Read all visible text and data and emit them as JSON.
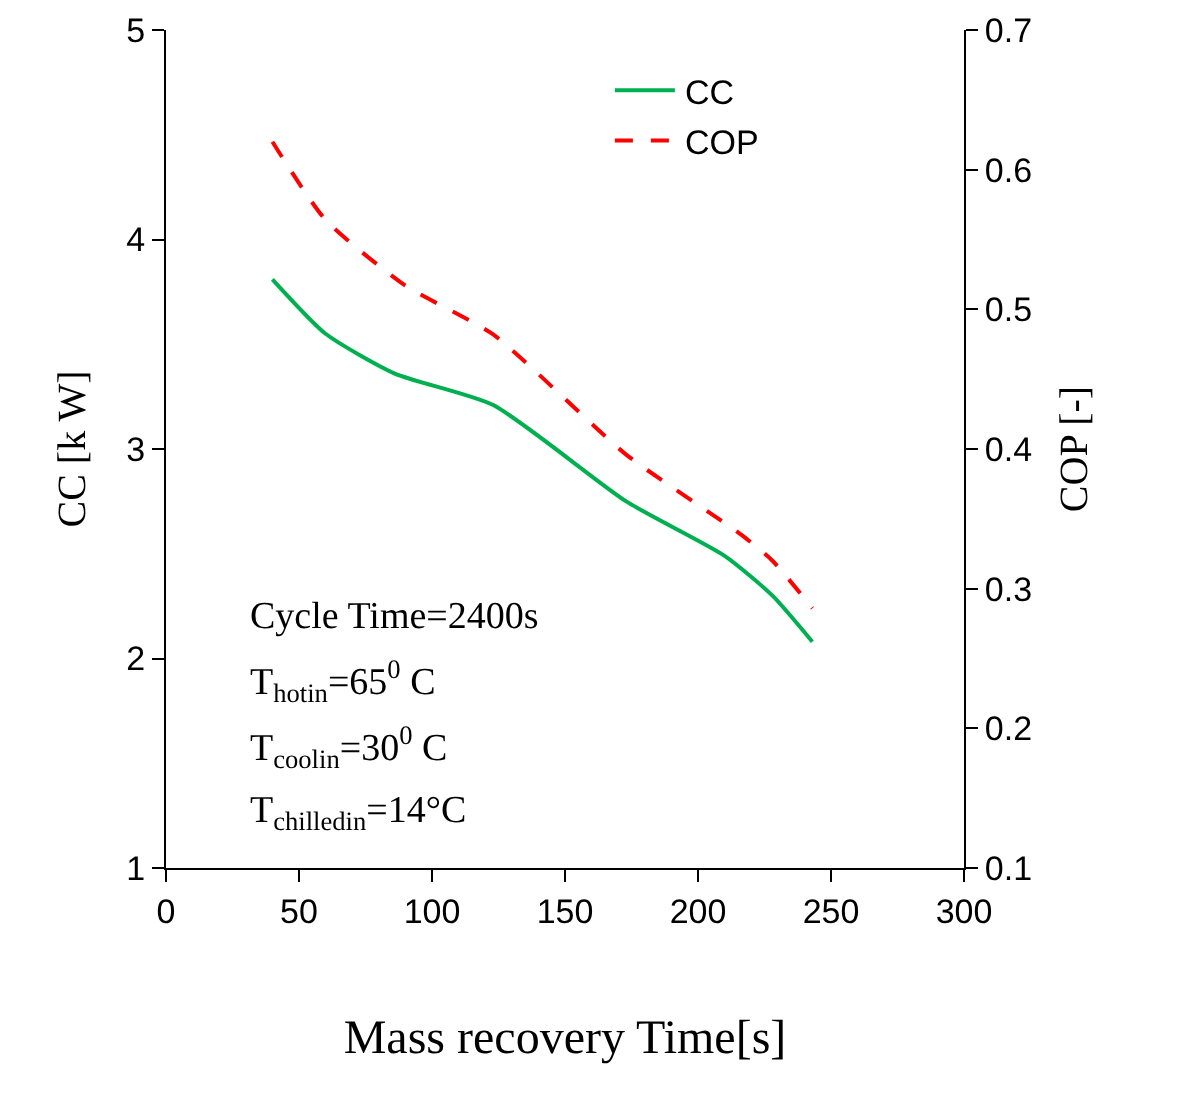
{
  "chart_data": {
    "type": "line",
    "xlabel": "Mass recovery Time[s]",
    "ylabel": "CC [k W]",
    "y2label": "COP [-]",
    "xlim": [
      0,
      300
    ],
    "xticks": [
      0,
      50,
      100,
      150,
      200,
      250,
      300
    ],
    "ylim": [
      1,
      5
    ],
    "yticks": [
      1,
      2,
      3,
      4,
      5
    ],
    "y2lim": [
      0.1,
      0.7
    ],
    "y2ticks": [
      0.1,
      0.2,
      0.3,
      0.4,
      0.5,
      0.6,
      0.7
    ],
    "grid": false,
    "legend": "top right",
    "series": [
      {
        "name": "CC",
        "color": "#00b050",
        "line_style": "solid",
        "x": [
          40,
          60,
          86,
          123,
          173,
          210,
          228,
          243
        ],
        "values": [
          3.81,
          3.55,
          3.36,
          3.21,
          2.75,
          2.49,
          2.3,
          2.08
        ]
      },
      {
        "name": "COP",
        "color": "#ff0000",
        "line_style": "dashed",
        "axis": "y2",
        "x": [
          40,
          60,
          90,
          123,
          173,
          216,
          228,
          243
        ],
        "values": [
          0.62,
          0.564,
          0.517,
          0.482,
          0.396,
          0.339,
          0.32,
          0.286
        ]
      }
    ],
    "annotations": [
      "Cycle Time=2400s",
      "T$_{hotin}$=65$^{0}$ C",
      "T$_{coolin}$=30$^{0}$ C",
      "T$_{chilledin}$=14°C"
    ]
  }
}
